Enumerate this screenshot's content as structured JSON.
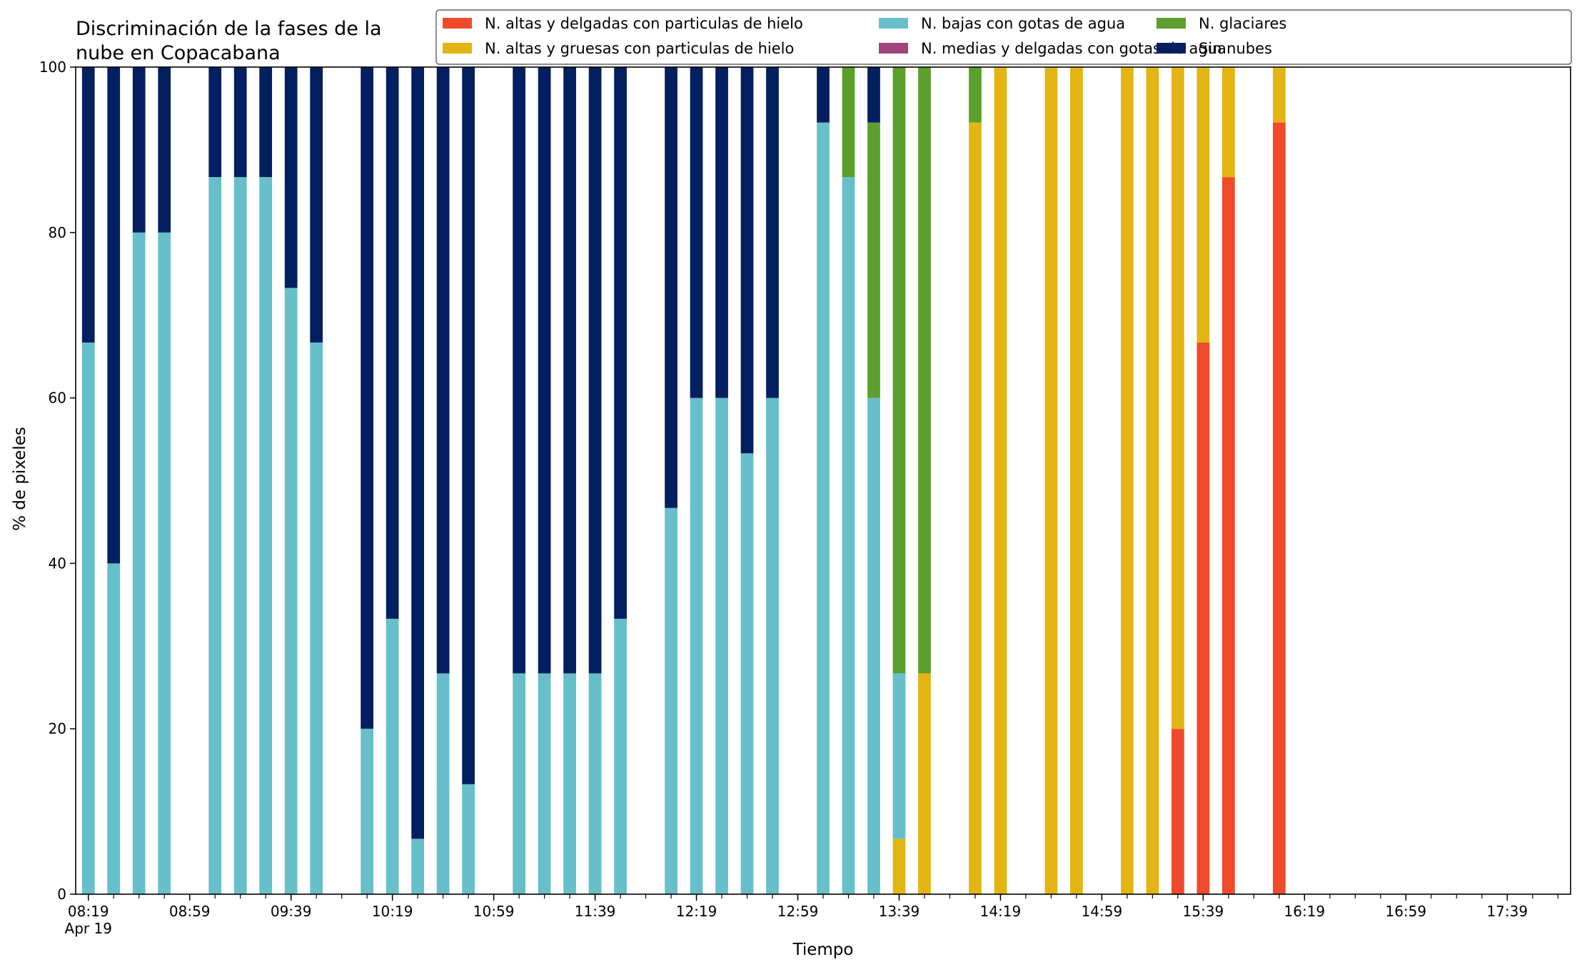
{
  "chart_data": {
    "type": "bar",
    "stacked": true,
    "title": "Discriminación de la fases de la nube en Copacabana",
    "title_lines": [
      "Discriminación de la fases de la",
      "nube en Copacabana"
    ],
    "xlabel": "Tiempo",
    "ylabel": "% de pixeles",
    "ylim": [
      0,
      100
    ],
    "xlim": [
      "08:14",
      "18:04"
    ],
    "yticks": [
      0,
      20,
      40,
      60,
      80,
      100
    ],
    "xtick_labels": [
      "08:19",
      "08:59",
      "09:39",
      "10:19",
      "10:59",
      "11:39",
      "12:19",
      "12:59",
      "13:39",
      "14:19",
      "14:59",
      "15:39",
      "16:19",
      "16:59",
      "17:39"
    ],
    "xtick_date_label": "Apr 19",
    "minor_tick_interval_min": 10,
    "legend_position": "top-right",
    "legend_columns": 3,
    "grid": false,
    "x": [
      "08:19",
      "08:29",
      "08:39",
      "08:49",
      "09:09",
      "09:19",
      "09:29",
      "09:39",
      "09:49",
      "10:09",
      "10:19",
      "10:29",
      "10:39",
      "10:49",
      "11:09",
      "11:19",
      "11:29",
      "11:39",
      "11:49",
      "12:09",
      "12:19",
      "12:29",
      "12:39",
      "12:49",
      "13:09",
      "13:19",
      "13:29",
      "13:39",
      "13:49",
      "14:09",
      "14:19",
      "14:39",
      "14:49",
      "15:09",
      "15:19",
      "15:29",
      "15:39",
      "15:49",
      "16:09"
    ],
    "series": [
      {
        "name": "N. altas y delgadas con particulas de hielo",
        "color": "#ef4a2b",
        "values": [
          0,
          0,
          0,
          0,
          0,
          0,
          0,
          0,
          0,
          0,
          0,
          0,
          0,
          0,
          0,
          0,
          0,
          0,
          0,
          0,
          0,
          0,
          0,
          0,
          0,
          0,
          0,
          0,
          0,
          0,
          0,
          0,
          0,
          0,
          0,
          20,
          66.7,
          86.7,
          93.3
        ]
      },
      {
        "name": "N. altas y gruesas con particulas de hielo",
        "color": "#e3b514",
        "values": [
          0,
          0,
          0,
          0,
          0,
          0,
          0,
          0,
          0,
          0,
          0,
          0,
          0,
          0,
          0,
          0,
          0,
          0,
          0,
          0,
          0,
          0,
          0,
          0,
          0,
          0,
          0,
          6.7,
          26.7,
          93.3,
          100,
          100,
          100,
          100,
          100,
          80,
          33.3,
          13.3,
          6.7
        ]
      },
      {
        "name": "N. bajas con gotas de agua",
        "color": "#67bfca",
        "values": [
          66.7,
          40,
          80,
          80,
          86.7,
          86.7,
          86.7,
          73.3,
          66.7,
          20,
          33.3,
          6.7,
          26.7,
          13.3,
          26.7,
          26.7,
          26.7,
          26.7,
          33.3,
          46.7,
          60,
          60,
          53.3,
          60,
          93.3,
          86.7,
          60,
          20,
          0,
          0,
          0,
          0,
          0,
          0,
          0,
          0,
          0,
          0,
          0
        ]
      },
      {
        "name": "N. medias y delgadas con gotas de agua",
        "color": "#a2437a",
        "values": [
          0,
          0,
          0,
          0,
          0,
          0,
          0,
          0,
          0,
          0,
          0,
          0,
          0,
          0,
          0,
          0,
          0,
          0,
          0,
          0,
          0,
          0,
          0,
          0,
          0,
          0,
          0,
          0,
          0,
          0,
          0,
          0,
          0,
          0,
          0,
          0,
          0,
          0,
          0
        ]
      },
      {
        "name": "N. glaciares",
        "color": "#5c9f2c",
        "values": [
          0,
          0,
          0,
          0,
          0,
          0,
          0,
          0,
          0,
          0,
          0,
          0,
          0,
          0,
          0,
          0,
          0,
          0,
          0,
          0,
          0,
          0,
          0,
          0,
          0,
          13.3,
          33.3,
          73.3,
          73.3,
          6.7,
          0,
          0,
          0,
          0,
          0,
          0,
          0,
          0,
          0
        ]
      },
      {
        "name": "Sin nubes",
        "color": "#031f5f",
        "values": [
          33.3,
          60,
          20,
          20,
          13.3,
          13.3,
          13.3,
          26.7,
          33.3,
          80,
          66.7,
          93.3,
          73.3,
          86.7,
          73.3,
          73.3,
          73.3,
          73.3,
          66.7,
          53.3,
          40,
          40,
          46.7,
          40,
          6.7,
          0,
          6.7,
          0,
          0,
          0,
          0,
          0,
          0,
          0,
          0,
          0,
          0,
          0,
          0
        ]
      }
    ]
  }
}
